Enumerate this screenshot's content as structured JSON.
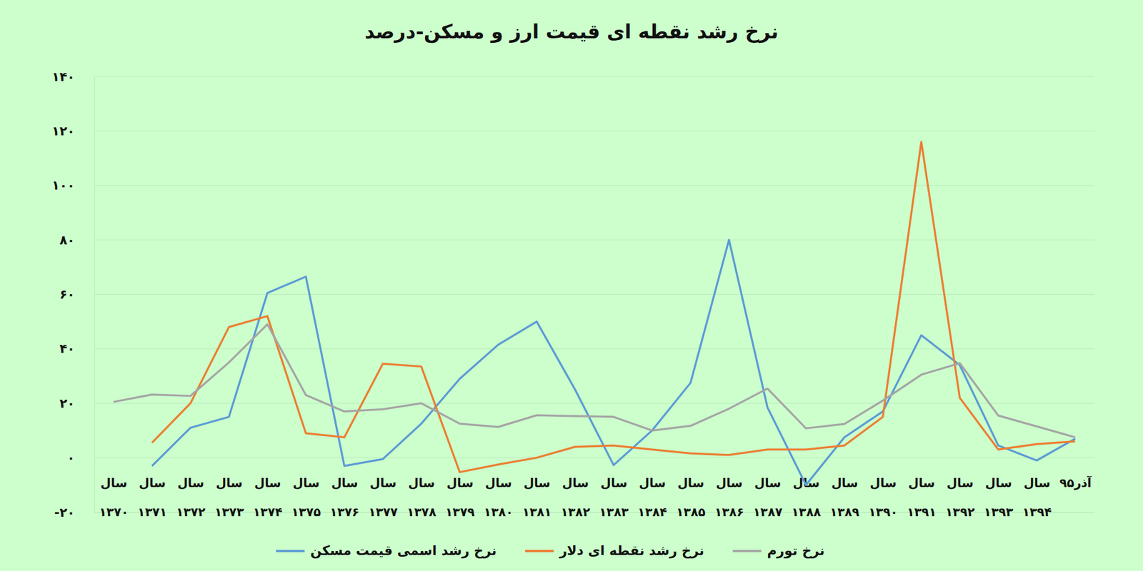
{
  "chart_data": {
    "type": "line",
    "title": "نرخ رشد نقطه ای قیمت ارز و مسکن-درصد",
    "categories": [
      "سال ۱۳۷۰",
      "سال ۱۳۷۱",
      "سال ۱۳۷۲",
      "سال ۱۳۷۳",
      "سال ۱۳۷۴",
      "سال ۱۳۷۵",
      "سال ۱۳۷۶",
      "سال ۱۳۷۷",
      "سال ۱۳۷۸",
      "سال ۱۳۷۹",
      "سال ۱۳۸۰",
      "سال ۱۳۸۱",
      "سال ۱۳۸۲",
      "سال ۱۳۸۳",
      "سال ۱۳۸۴",
      "سال ۱۳۸۵",
      "سال ۱۳۸۶",
      "سال ۱۳۸۷",
      "سال ۱۳۸۸",
      "سال ۱۳۸۹",
      "سال ۱۳۹۰",
      "سال ۱۳۹۱",
      "سال ۱۳۹۲",
      "سال ۱۳۹۳",
      "سال ۱۳۹۴",
      "آذر۹۵"
    ],
    "series": [
      {
        "name": "نرخ رشد اسمی قیمت مسکن",
        "color": "#5b9bd5",
        "values": [
          null,
          -3,
          11,
          15,
          60.5,
          66.5,
          -3,
          -0.5,
          12.5,
          29,
          41.5,
          50,
          25,
          -2.7,
          10,
          27.5,
          80,
          18.5,
          -10,
          7.5,
          17,
          45,
          34,
          4.5,
          -1,
          7
        ]
      },
      {
        "name": "نرخ رشد نقطه ای دلار",
        "color": "#ed7d31",
        "values": [
          null,
          5.5,
          20,
          48,
          52,
          9,
          7.5,
          34.5,
          33.5,
          -5.3,
          -2.5,
          0,
          4,
          4.5,
          3,
          1.6,
          1,
          3,
          3,
          4.5,
          15,
          116,
          22,
          3,
          5,
          6
        ]
      },
      {
        "name": "نرخ تورم",
        "color": "#a5a5a5",
        "values": [
          20.5,
          23.2,
          22.7,
          35,
          49,
          23,
          17,
          17.8,
          20,
          12.5,
          11.3,
          15.6,
          15.3,
          15,
          10,
          11.7,
          18,
          25.4,
          10.8,
          12.4,
          21,
          30.5,
          34.7,
          15.5,
          11.5,
          7.5
        ]
      }
    ],
    "ylim": [
      -20,
      140
    ],
    "yticks": [
      {
        "value": -20,
        "label": "-۲۰"
      },
      {
        "value": 0,
        "label": "۰"
      },
      {
        "value": 20,
        "label": "۲۰"
      },
      {
        "value": 40,
        "label": "۴۰"
      },
      {
        "value": 60,
        "label": "۶۰"
      },
      {
        "value": 80,
        "label": "۸۰"
      },
      {
        "value": 100,
        "label": "۱۰۰"
      },
      {
        "value": 120,
        "label": "۱۲۰"
      },
      {
        "value": 140,
        "label": "۱۴۰"
      }
    ],
    "grid": true,
    "legend": "bottom"
  }
}
